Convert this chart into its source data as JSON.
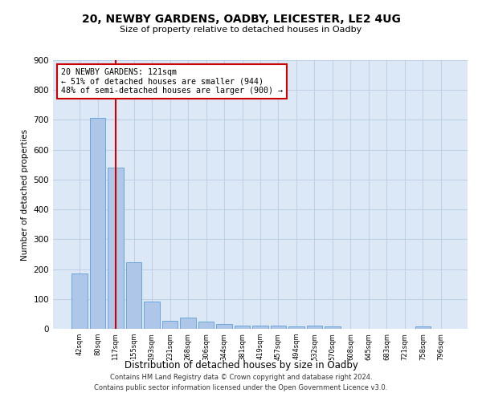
{
  "title": "20, NEWBY GARDENS, OADBY, LEICESTER, LE2 4UG",
  "subtitle": "Size of property relative to detached houses in Oadby",
  "xlabel": "Distribution of detached houses by size in Oadby",
  "ylabel": "Number of detached properties",
  "footer_line1": "Contains HM Land Registry data © Crown copyright and database right 2024.",
  "footer_line2": "Contains public sector information licensed under the Open Government Licence v3.0.",
  "bar_labels": [
    "42sqm",
    "80sqm",
    "117sqm",
    "155sqm",
    "193sqm",
    "231sqm",
    "268sqm",
    "306sqm",
    "344sqm",
    "381sqm",
    "419sqm",
    "457sqm",
    "494sqm",
    "532sqm",
    "570sqm",
    "608sqm",
    "645sqm",
    "683sqm",
    "721sqm",
    "758sqm",
    "796sqm"
  ],
  "bar_values": [
    185,
    707,
    540,
    222,
    92,
    27,
    37,
    24,
    15,
    12,
    12,
    12,
    8,
    10,
    8,
    0,
    0,
    0,
    0,
    8,
    0
  ],
  "bar_color": "#aec6e8",
  "bar_edge_color": "#5a9fd4",
  "annotation_box_text": "20 NEWBY GARDENS: 121sqm\n← 51% of detached houses are smaller (944)\n48% of semi-detached houses are larger (900) →",
  "property_line_idx": 2,
  "property_line_color": "#cc0000",
  "annotation_rect_color": "#cc0000",
  "background_color": "#ffffff",
  "axes_bg_color": "#dce8f5",
  "grid_color": "#b8cce4",
  "ylim": [
    0,
    900
  ],
  "yticks": [
    0,
    100,
    200,
    300,
    400,
    500,
    600,
    700,
    800,
    900
  ]
}
